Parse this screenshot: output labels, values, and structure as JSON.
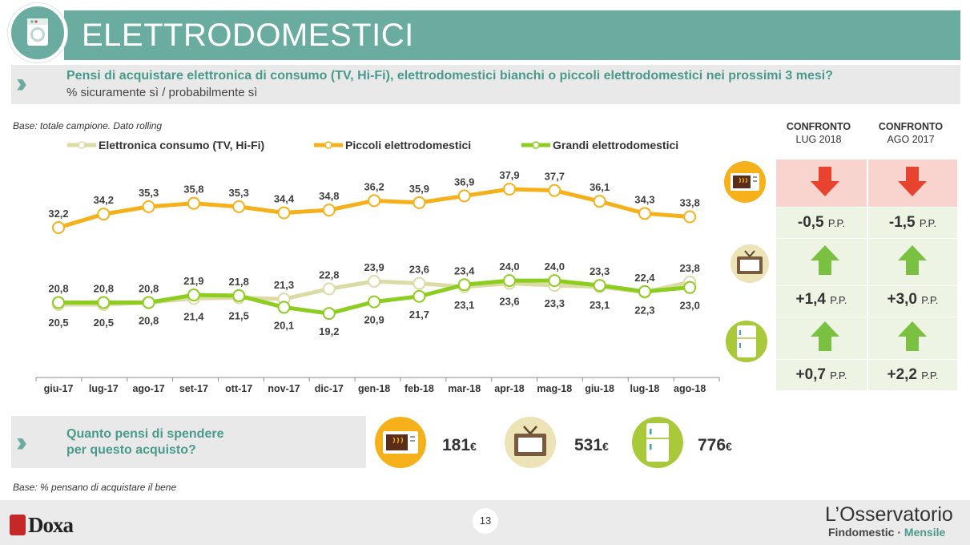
{
  "header": {
    "title": "ELETTRODOMESTICI",
    "icon": "washing-machine-icon",
    "accent": "#6aaca0"
  },
  "question": {
    "title": "Pensi di acquistare elettronica di consumo (TV, Hi-Fi), elettrodomestici bianchi o piccoli elettrodomestici nei prossimi 3 mesi?",
    "subtitle": "% sicuramente sì / probabilmente sì"
  },
  "base_note": "Base: totale campione. Dato rolling",
  "chart_data": {
    "type": "line",
    "categories": [
      "giu-17",
      "lug-17",
      "ago-17",
      "set-17",
      "ott-17",
      "nov-17",
      "dic-17",
      "gen-18",
      "feb-18",
      "mar-18",
      "apr-18",
      "mag-18",
      "giu-18",
      "lug-18",
      "ago-18"
    ],
    "legend_position": "top",
    "series": [
      {
        "name": "Elettronica consumo (TV, Hi-Fi)",
        "color": "#dcdba6",
        "values": [
          20.5,
          20.5,
          20.8,
          21.4,
          21.5,
          21.3,
          22.8,
          23.9,
          23.6,
          23.1,
          23.6,
          23.3,
          23.1,
          22.3,
          23.8
        ],
        "labels": [
          "20,5",
          "20,5",
          "20,8",
          "21,4",
          "21,5",
          "21,3",
          "22,8",
          "23,9",
          "23,6",
          "23,1",
          "23,6",
          "23,3",
          "23,1",
          "22,3",
          "23,8"
        ]
      },
      {
        "name": "Piccoli elettrodomestici",
        "color": "#f5b01a",
        "values": [
          32.2,
          34.2,
          35.3,
          35.8,
          35.3,
          34.4,
          34.8,
          36.2,
          35.9,
          36.9,
          37.9,
          37.7,
          36.1,
          34.3,
          33.8
        ],
        "labels": [
          "32,2",
          "34,2",
          "35,3",
          "35,8",
          "35,3",
          "34,4",
          "34,8",
          "36,2",
          "35,9",
          "36,9",
          "37,9",
          "37,7",
          "36,1",
          "34,3",
          "33,8"
        ]
      },
      {
        "name": "Grandi elettrodomestici",
        "color": "#8ccd1e",
        "values": [
          20.8,
          20.8,
          20.8,
          21.9,
          21.8,
          20.1,
          19.2,
          20.9,
          21.7,
          23.4,
          24.0,
          24.0,
          23.3,
          22.4,
          23.0
        ],
        "labels": [
          "20,8",
          "20,8",
          "20,8",
          "21,9",
          "21,8",
          "20,1",
          "19,2",
          "20,9",
          "21,7",
          "23,4",
          "24,0",
          "24,0",
          "23,3",
          "22,4",
          "23,0"
        ]
      }
    ]
  },
  "comparison": {
    "headers": [
      {
        "bold": "CONFRONTO",
        "sub": "LUG 2018"
      },
      {
        "bold": "CONFRONTO",
        "sub": "AGO 2017"
      }
    ],
    "unit": "P.P.",
    "rows": [
      {
        "icon": "microwave-icon",
        "values": [
          "-0,5",
          "-1,5"
        ],
        "direction": "down"
      },
      {
        "icon": "tv-icon",
        "values": [
          "+1,4",
          "+3,0"
        ],
        "direction": "up"
      },
      {
        "icon": "fridge-icon",
        "values": [
          "+0,7",
          "+2,2"
        ],
        "direction": "up"
      }
    ]
  },
  "spend": {
    "line1": "Quanto pensi di spendere",
    "line2": "per questo acquisto?",
    "items": [
      {
        "icon": "microwave-icon",
        "value": "181",
        "unit": "€"
      },
      {
        "icon": "tv-icon",
        "value": "531",
        "unit": "€"
      },
      {
        "icon": "fridge-icon",
        "value": "776",
        "unit": "€"
      }
    ]
  },
  "base_note2": "Base: % pensano di acquistare il bene",
  "footer": {
    "page": "13",
    "brand_left": "Doxa",
    "brand_right_title": "L’Osservatorio",
    "brand_right_sub1": "Findomestic · ",
    "brand_right_sub2": "Mensile"
  }
}
